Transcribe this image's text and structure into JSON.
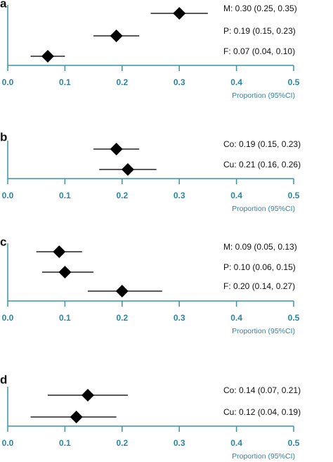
{
  "chart_data": [
    {
      "type": "forest",
      "panel": "a",
      "xlabel": "Proportion (95%CI)",
      "xlim": [
        0,
        0.5
      ],
      "xticks": [
        {
          "value": 0,
          "label": "0.0"
        },
        0.1,
        0.2,
        0.3,
        0.4,
        0.5
      ],
      "labels": [
        "M: 0.30 (0.25, 0.35)",
        "P: 0.19 (0.15, 0.23)",
        "F: 0.07 (0.04, 0.10)"
      ],
      "values": [
        0.3,
        0.19,
        0.07
      ],
      "lower": [
        0.25,
        0.15,
        0.04
      ],
      "upper": [
        0.35,
        0.23,
        0.1
      ]
    },
    {
      "type": "forest",
      "panel": "b",
      "xlabel": "Proportion (95%CI)",
      "xlim": [
        0,
        0.5
      ],
      "xticks": [
        {
          "value": 0,
          "label": "0.0"
        },
        0.1,
        0.2,
        0.3,
        0.4,
        0.5
      ],
      "labels": [
        "Co: 0.19 (0.15, 0.23)",
        "Cu: 0.21 (0.16, 0.26)"
      ],
      "values": [
        0.19,
        0.21
      ],
      "lower": [
        0.15,
        0.16
      ],
      "upper": [
        0.23,
        0.26
      ]
    },
    {
      "type": "forest",
      "panel": "c",
      "xlabel": "Proportion (95%CI)",
      "xlim": [
        0,
        0.5
      ],
      "xticks": [
        {
          "value": 0,
          "label": "0.0"
        },
        0.1,
        0.2,
        0.3,
        0.4,
        0.5
      ],
      "labels": [
        "M: 0.09 (0.05, 0.13)",
        "P: 0.10 (0.06, 0.15)",
        "F: 0.20 (0.14, 0.27)"
      ],
      "values": [
        0.09,
        0.1,
        0.2
      ],
      "lower": [
        0.05,
        0.06,
        0.14
      ],
      "upper": [
        0.13,
        0.15,
        0.27
      ]
    },
    {
      "type": "forest",
      "panel": "d",
      "xlabel": "Proportion (95%CI)",
      "xlim": [
        0,
        0.5
      ],
      "xticks": [
        {
          "value": 0,
          "label": "0.0"
        },
        0.1,
        0.2,
        0.3,
        0.4,
        0.5
      ],
      "labels": [
        "Co: 0.14 (0.07, 0.21)",
        "Cu: 0.12 (0.04, 0.19)"
      ],
      "values": [
        0.14,
        0.12
      ],
      "lower": [
        0.07,
        0.04
      ],
      "upper": [
        0.21,
        0.19
      ]
    }
  ]
}
